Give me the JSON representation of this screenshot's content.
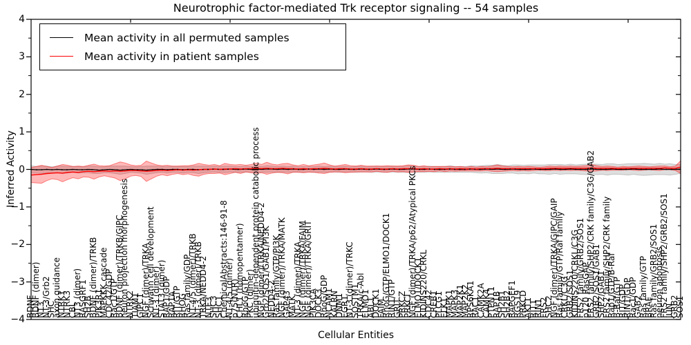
{
  "title": "Neurotrophic factor-mediated Trk receptor signaling -- 54 samples",
  "legend": {
    "position": "upper left",
    "items": [
      {
        "label": "Mean activity in all permuted samples",
        "color": "#000000"
      },
      {
        "label": "Mean activity in patient samples",
        "color": "#ff0000"
      }
    ]
  },
  "colors": {
    "patient_line": "#ff0000",
    "patient_band_fill": "rgba(255,0,0,0.28)",
    "patient_band_edge": "rgba(255,0,0,0.45)",
    "permuted_line": "#000000",
    "permuted_band_fill": "rgba(0,0,0,0.13)",
    "permuted_band_edge": "rgba(0,0,0,0.18)",
    "axis": "#000000",
    "background": "#ffffff"
  },
  "chart_data": {
    "type": "line",
    "title": "Neurotrophic factor-mediated Trk receptor signaling -- 54 samples",
    "xlabel": "Cellular Entities",
    "ylabel": "Inferred Activity",
    "ylim": [
      -4,
      4
    ],
    "yticks": [
      4,
      3,
      2,
      1,
      0,
      -1,
      -2,
      -3,
      -4
    ],
    "grid": false,
    "legend_position": "upper left",
    "categories": [
      "BDNF",
      "BDNF (dimer)",
      "NT3",
      "NT-3/Grb2",
      "SHC",
      "axon guidance",
      "NTRK1",
      "NTRK3",
      "CBL",
      "NT3 (dimer)",
      "RASGRF1",
      "SH2B",
      "BDNF (dimer)/TRKB",
      "PIK3R1",
      "MAPKKK cascade",
      "CDC42/GDP",
      "Rac1/GTP",
      "BDNF (dimer)/TRKB/GIPC",
      "neuron projection morphogenesis",
      "NTRK2",
      "TIAM1",
      "GIPC1",
      "NGF (dimer)/TRKA",
      "Schwann cell development",
      "NT-3 (dimer)",
      "STAT3 (dimer)",
      "RAP1/GDP",
      "RAP1A",
      "RIT/GTP",
      "RHOG",
      "Ras family/GDP",
      "NT-4/5 (dimer)/TRKB",
      "NT-3 (dimer)/TRKB",
      "TRKA/NEDD4-2",
      "NTF3",
      "SHC3",
      "SHC1",
      "ChemicalAbstracts:146-91-8",
      "NT-4/5 (dimer)",
      "p75(NTR)",
      "CHL1 (homopentamer)",
      "RhoG/GTP",
      "PKC (dimer)",
      "ubiquitin-dependent protein catabolic process",
      "NGF (dimer)/TRKA/NEDD4-2",
      "Grb2/SOS1/GAB1/PI3K",
      "NEDD4-2",
      "Ras family/GTP/PI3K",
      "NGF (dimer)/TRKA/MATK",
      "GAP43",
      "MATK",
      "NT-3 (dimer)/TRKA",
      "NGF (dimer)/TRKA/FAIM",
      "NGF (dimer)/TRKA/GRIT",
      "PIK3CA",
      "DOCK3",
      "RhoG/GDP",
      "NCAM1",
      "KALRN",
      "DNM1",
      "EGR1",
      "NT-3 (dimer)/TRKC",
      "SQSTM1",
      "TRKA/c-Abl",
      "ELMO1",
      "ABL1",
      "DOCK1",
      "FAIM",
      "RhoG/GTP/ELMO1/DOCK1",
      "RIN1/GTP",
      "GRIT",
      "PRKCZ",
      "PRKCI",
      "NGF (dimer)/TRKA/p62/Atypical PKCs",
      "ELMO1/DOCK1",
      "KIDINS220/CRKL",
      "CDC42",
      "CREB1",
      "PLCG1",
      "ELK1",
      "MAPK1",
      "MAPK3",
      "MAP2K1",
      "MAP2K2",
      "RPS6KA1",
      "RAC1",
      "CAMK2A",
      "CAMK4",
      "PTPN11",
      "RAP1B",
      "SH2B1",
      "SH2B2",
      "RAPGEF1",
      "RGS19",
      "PRKCD",
      "AKT1",
      "RIT1",
      "RIN1",
      "FRS2",
      "SHC2",
      "NGF (dimer)/TRKA/GIPC/GAIP",
      "Ras family/GTP/Raf family",
      "CRKL/C3G",
      "GRB2/SOS1",
      "KIDINS220/CRKL/C3G",
      "FRS2 family/GRB2/SOS1",
      "p120 RasGAP",
      "FRS2 family/SHP2/CRK family/C3G/GAB2",
      "GRB2/SOS1/GAB1",
      "SHP2/GAB1",
      "FRS2 family/SHP2/CRK family",
      "Rap1/GTP/B-Raf",
      "B-Raf/GTP",
      "RIT/GDP",
      "RIN1/GDP",
      "Rac1/GDP",
      "GAB2",
      "Ras family/GTP",
      "BRAF",
      "Ras family/GRB2/SOS1",
      "neuron apoptosis",
      "FRS2 family/SHP2/GRB2/SOS1",
      "JUN",
      "GRB2",
      "SOS1"
    ],
    "series": [
      {
        "name": "Mean activity in all permuted samples",
        "color": "#000000",
        "values": [
          0,
          -0.01,
          -0.01,
          0,
          -0.01,
          0,
          -0.01,
          -0.01,
          0,
          -0.01,
          -0.01,
          0,
          -0.01,
          -0.02,
          -0.01,
          0,
          -0.01,
          -0.02,
          -0.01,
          0,
          -0.01,
          -0.01,
          -0.02,
          -0.01,
          0,
          0,
          -0.01,
          0,
          0,
          -0.01,
          0,
          0,
          -0.01,
          0,
          0,
          0.01,
          0,
          0,
          0.01,
          0,
          0,
          0.01,
          0,
          0.01,
          0,
          0.01,
          0.01,
          0,
          0.01,
          0,
          0.01,
          0,
          0,
          0.01,
          0,
          0.01,
          0,
          0.01,
          0,
          0,
          0.01,
          0,
          0,
          0.01,
          0,
          0,
          0.01,
          0,
          0,
          0.01,
          0,
          0,
          0.01,
          0.01,
          0,
          0,
          0.01,
          0,
          0,
          0,
          0.01,
          0,
          0,
          0,
          0.01,
          0,
          0,
          0.01,
          0,
          0.01,
          0,
          0,
          0.01,
          0,
          0,
          0,
          0.01,
          0,
          0,
          0,
          0.01,
          0,
          0,
          0.01,
          0,
          0,
          0,
          0.01,
          0,
          0,
          0,
          0.01,
          0,
          0,
          0,
          0.01,
          0,
          0,
          0,
          0,
          0.01,
          0,
          0,
          0,
          0.01
        ],
        "std": [
          0.1,
          0.09,
          0.1,
          0.09,
          0.08,
          0.09,
          0.1,
          0.09,
          0.08,
          0.09,
          0.08,
          0.09,
          0.1,
          0.09,
          0.08,
          0.09,
          0.1,
          0.11,
          0.1,
          0.08,
          0.08,
          0.09,
          0.11,
          0.1,
          0.09,
          0.08,
          0.09,
          0.08,
          0.08,
          0.09,
          0.08,
          0.09,
          0.1,
          0.09,
          0.08,
          0.08,
          0.08,
          0.09,
          0.08,
          0.08,
          0.08,
          0.08,
          0.08,
          0.09,
          0.08,
          0.09,
          0.08,
          0.08,
          0.08,
          0.08,
          0.08,
          0.07,
          0.08,
          0.07,
          0.08,
          0.08,
          0.08,
          0.08,
          0.07,
          0.08,
          0.08,
          0.07,
          0.08,
          0.08,
          0.07,
          0.08,
          0.08,
          0.08,
          0.08,
          0.08,
          0.08,
          0.08,
          0.09,
          0.09,
          0.08,
          0.08,
          0.08,
          0.08,
          0.08,
          0.08,
          0.09,
          0.08,
          0.08,
          0.08,
          0.09,
          0.09,
          0.1,
          0.1,
          0.11,
          0.12,
          0.11,
          0.1,
          0.11,
          0.12,
          0.11,
          0.12,
          0.11,
          0.12,
          0.12,
          0.13,
          0.12,
          0.13,
          0.12,
          0.13,
          0.12,
          0.13,
          0.14,
          0.13,
          0.14,
          0.13,
          0.15,
          0.14,
          0.13,
          0.14,
          0.15,
          0.14,
          0.15,
          0.16,
          0.15,
          0.14,
          0.15,
          0.14,
          0.15,
          0.13,
          0.12
        ]
      },
      {
        "name": "Mean activity in patient samples",
        "color": "#ff0000",
        "values": [
          -0.15,
          -0.14,
          -0.13,
          -0.11,
          -0.1,
          -0.09,
          -0.1,
          -0.08,
          -0.07,
          -0.08,
          -0.06,
          -0.05,
          -0.06,
          -0.05,
          -0.04,
          -0.05,
          -0.04,
          -0.05,
          -0.04,
          -0.03,
          -0.03,
          -0.04,
          -0.05,
          -0.04,
          -0.03,
          -0.02,
          -0.03,
          -0.02,
          -0.01,
          -0.02,
          -0.01,
          -0.02,
          -0.01,
          0,
          0,
          0.01,
          0,
          0.01,
          0.01,
          0.02,
          0.01,
          0.02,
          0.02,
          0.03,
          0.02,
          0.03,
          0.02,
          0.02,
          0.03,
          0.02,
          0.02,
          0.01,
          0.02,
          0.01,
          0.02,
          0.02,
          0.03,
          0.02,
          0.01,
          0.02,
          0.02,
          0.01,
          0.01,
          0.02,
          0.01,
          0.01,
          0.02,
          0.01,
          0.01,
          0.02,
          0.01,
          0.02,
          0.02,
          0.02,
          0.01,
          0.02,
          0.01,
          0.01,
          0.02,
          0.01,
          0.02,
          0.01,
          0.02,
          0.01,
          0.02,
          0.01,
          0.02,
          0.02,
          0.02,
          0.03,
          0.02,
          0.02,
          0.02,
          0.02,
          0.02,
          0.02,
          0.02,
          0.02,
          0.02,
          0.03,
          0.03,
          0.03,
          0.03,
          0.03,
          0.03,
          0.03,
          0.03,
          0.04,
          0.03,
          0.03,
          0.03,
          0.03,
          0.02,
          0.03,
          0.03,
          0.03,
          0.03,
          0.03,
          0.03,
          0.03,
          0.03,
          0.04,
          0.03,
          0.03,
          0.06
        ],
        "std": [
          0.2,
          0.22,
          0.24,
          0.19,
          0.15,
          0.18,
          0.23,
          0.19,
          0.15,
          0.17,
          0.14,
          0.16,
          0.2,
          0.15,
          0.13,
          0.15,
          0.19,
          0.25,
          0.21,
          0.15,
          0.13,
          0.15,
          0.27,
          0.21,
          0.15,
          0.12,
          0.14,
          0.11,
          0.1,
          0.12,
          0.11,
          0.14,
          0.17,
          0.13,
          0.11,
          0.12,
          0.1,
          0.15,
          0.12,
          0.1,
          0.12,
          0.09,
          0.11,
          0.14,
          0.11,
          0.16,
          0.12,
          0.1,
          0.12,
          0.14,
          0.1,
          0.09,
          0.11,
          0.09,
          0.1,
          0.12,
          0.14,
          0.1,
          0.08,
          0.09,
          0.11,
          0.09,
          0.08,
          0.09,
          0.08,
          0.08,
          0.07,
          0.08,
          0.09,
          0.07,
          0.08,
          0.08,
          0.1,
          0.09,
          0.07,
          0.08,
          0.06,
          0.07,
          0.06,
          0.07,
          0.06,
          0.06,
          0.06,
          0.05,
          0.06,
          0.05,
          0.06,
          0.05,
          0.07,
          0.09,
          0.07,
          0.06,
          0.05,
          0.06,
          0.05,
          0.06,
          0.05,
          0.04,
          0.05,
          0.06,
          0.05,
          0.06,
          0.05,
          0.06,
          0.05,
          0.06,
          0.07,
          0.09,
          0.07,
          0.05,
          0.06,
          0.05,
          0.04,
          0.05,
          0.04,
          0.05,
          0.06,
          0.05,
          0.04,
          0.05,
          0.06,
          0.05,
          0.04,
          0.06,
          0.17
        ]
      }
    ]
  }
}
